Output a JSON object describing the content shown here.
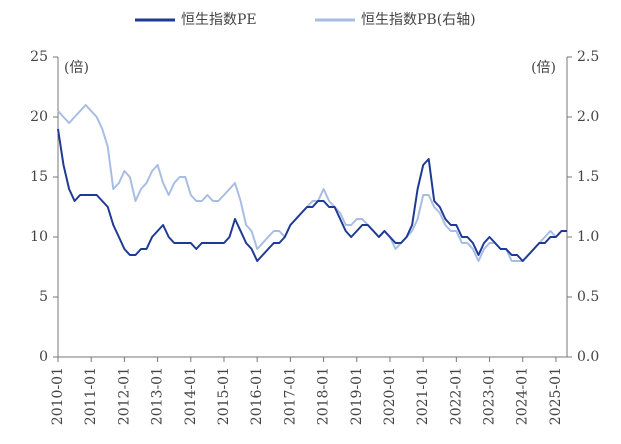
{
  "chart_data": {
    "type": "line",
    "left_unit": "(倍)",
    "right_unit": "(倍)",
    "x": [
      "2010-01",
      "2010-03",
      "2010-05",
      "2010-07",
      "2010-09",
      "2010-11",
      "2011-01",
      "2011-03",
      "2011-05",
      "2011-07",
      "2011-09",
      "2011-11",
      "2012-01",
      "2012-03",
      "2012-05",
      "2012-07",
      "2012-09",
      "2012-11",
      "2013-01",
      "2013-03",
      "2013-05",
      "2013-07",
      "2013-09",
      "2013-11",
      "2014-01",
      "2014-03",
      "2014-05",
      "2014-07",
      "2014-09",
      "2014-11",
      "2015-01",
      "2015-03",
      "2015-05",
      "2015-07",
      "2015-09",
      "2015-11",
      "2016-01",
      "2016-03",
      "2016-05",
      "2016-07",
      "2016-09",
      "2016-11",
      "2017-01",
      "2017-03",
      "2017-05",
      "2017-07",
      "2017-09",
      "2017-11",
      "2018-01",
      "2018-03",
      "2018-05",
      "2018-07",
      "2018-09",
      "2018-11",
      "2019-01",
      "2019-03",
      "2019-05",
      "2019-07",
      "2019-09",
      "2019-11",
      "2020-01",
      "2020-03",
      "2020-05",
      "2020-07",
      "2020-09",
      "2020-11",
      "2021-01",
      "2021-03",
      "2021-05",
      "2021-07",
      "2021-09",
      "2021-11",
      "2022-01",
      "2022-03",
      "2022-05",
      "2022-07",
      "2022-09",
      "2022-11",
      "2023-01",
      "2023-03",
      "2023-05",
      "2023-07",
      "2023-09",
      "2023-11",
      "2024-01",
      "2024-03",
      "2024-05",
      "2024-07",
      "2024-09",
      "2024-11",
      "2025-01",
      "2025-03",
      "2025-05"
    ],
    "series": [
      {
        "name": "恒生指数PE",
        "color": "#1f3a93",
        "axis": "y",
        "values": [
          19,
          16,
          14,
          13,
          13.5,
          13.5,
          13.5,
          13.5,
          13,
          12.5,
          11,
          10,
          9,
          8.5,
          8.5,
          9,
          9,
          10,
          10.5,
          11,
          10,
          9.5,
          9.5,
          9.5,
          9.5,
          9,
          9.5,
          9.5,
          9.5,
          9.5,
          9.5,
          10,
          11.5,
          10.5,
          9.5,
          9,
          8,
          8.5,
          9,
          9.5,
          9.5,
          10,
          11,
          11.5,
          12,
          12.5,
          12.5,
          13,
          13,
          12.5,
          12.5,
          11.5,
          10.5,
          10,
          10.5,
          11,
          11,
          10.5,
          10,
          10.5,
          10,
          9.5,
          9.5,
          10,
          11,
          14,
          16,
          16.5,
          13,
          12.5,
          11.5,
          11,
          11,
          10,
          10,
          9.5,
          8.5,
          9.5,
          10,
          9.5,
          9,
          9,
          8.5,
          8.5,
          8,
          8.5,
          9,
          9.5,
          9.5,
          10,
          10,
          10.5,
          10.5
        ]
      },
      {
        "name": "恒生指数PB(右轴)",
        "color": "#a8bde3",
        "axis": "y2",
        "values": [
          2.05,
          2.0,
          1.95,
          2.0,
          2.05,
          2.1,
          2.05,
          2.0,
          1.9,
          1.75,
          1.4,
          1.45,
          1.55,
          1.5,
          1.3,
          1.4,
          1.45,
          1.55,
          1.6,
          1.45,
          1.35,
          1.45,
          1.5,
          1.5,
          1.35,
          1.3,
          1.3,
          1.35,
          1.3,
          1.3,
          1.35,
          1.4,
          1.45,
          1.3,
          1.1,
          1.05,
          0.9,
          0.95,
          1.0,
          1.05,
          1.05,
          1.0,
          1.1,
          1.15,
          1.2,
          1.25,
          1.3,
          1.3,
          1.4,
          1.3,
          1.25,
          1.2,
          1.1,
          1.1,
          1.15,
          1.15,
          1.1,
          1.05,
          1.0,
          1.05,
          1.0,
          0.9,
          0.95,
          1.0,
          1.05,
          1.15,
          1.35,
          1.35,
          1.25,
          1.2,
          1.1,
          1.05,
          1.05,
          0.95,
          0.95,
          0.9,
          0.8,
          0.9,
          0.95,
          0.95,
          0.9,
          0.9,
          0.8,
          0.8,
          0.8,
          0.85,
          0.9,
          0.95,
          1.0,
          1.05,
          1.0,
          1.05,
          1.05
        ]
      }
    ],
    "xlim": [
      "2010-01",
      "2025-05"
    ],
    "xticks": [
      "2010-01",
      "2011-01",
      "2012-01",
      "2013-01",
      "2014-01",
      "2015-01",
      "2016-01",
      "2017-01",
      "2018-01",
      "2019-01",
      "2020-01",
      "2021-01",
      "2022-01",
      "2023-01",
      "2024-01",
      "2025-01"
    ],
    "ylim": [
      0,
      25
    ],
    "yticks": [
      0,
      5,
      10,
      15,
      20,
      25
    ],
    "y2lim": [
      0,
      2.5
    ],
    "y2ticks": [
      {
        "value": 0,
        "label": "0.0"
      },
      0.5,
      {
        "value": 1,
        "label": "1.0"
      },
      1.5,
      {
        "value": 2,
        "label": "2.0"
      },
      2.5
    ],
    "legend": "top"
  }
}
